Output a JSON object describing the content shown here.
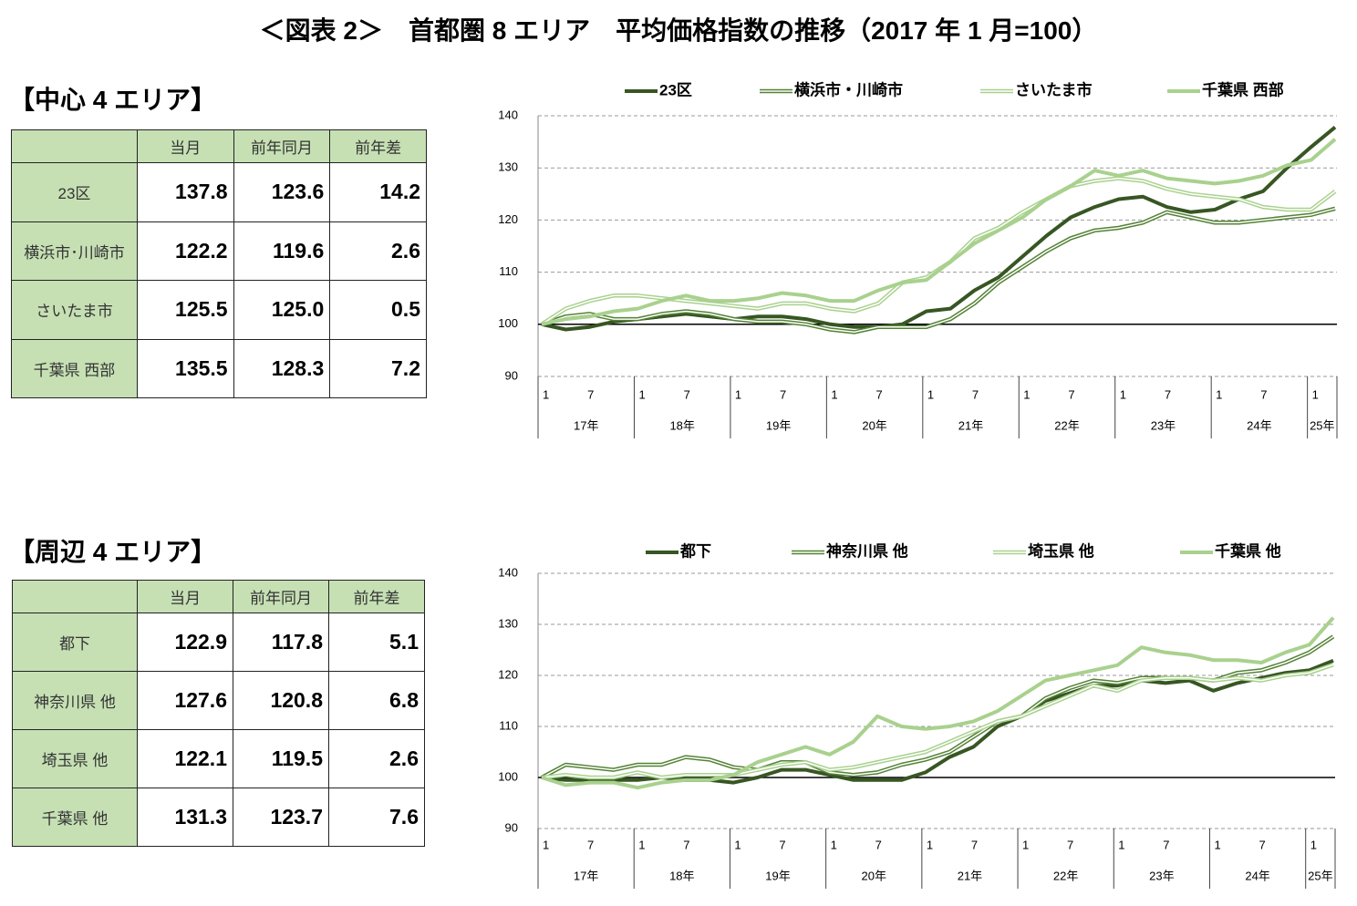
{
  "title": "＜図表 2＞　首都圏 8 エリア　平均価格指数の推移（2017 年 1 月=100）",
  "sections": [
    {
      "heading": "【中心 4 エリア】",
      "table": {
        "header": [
          "当月",
          "前年同月",
          "前年差"
        ],
        "rows": [
          [
            "23区",
            "137.8",
            "123.6",
            "14.2"
          ],
          [
            "横浜市･川崎市",
            "122.2",
            "119.6",
            "2.6"
          ],
          [
            "さいたま市",
            "125.5",
            "125.0",
            "0.5"
          ],
          [
            "千葉県 西部",
            "135.5",
            "128.3",
            "7.2"
          ]
        ]
      }
    },
    {
      "heading": "【周辺 4 エリア】",
      "table": {
        "header": [
          "当月",
          "前年同月",
          "前年差"
        ],
        "rows": [
          [
            "都下",
            "122.9",
            "117.8",
            "5.1"
          ],
          [
            "神奈川県 他",
            "127.6",
            "120.8",
            "6.8"
          ],
          [
            "埼玉県 他",
            "122.1",
            "119.5",
            "2.6"
          ],
          [
            "千葉県 他",
            "131.3",
            "123.7",
            "7.6"
          ]
        ]
      }
    }
  ],
  "chart_data": [
    {
      "type": "line",
      "categories": [
        "1",
        null,
        "7",
        null,
        "1",
        null,
        "7",
        null,
        "1",
        null,
        "7",
        null,
        "1",
        null,
        "7",
        null,
        "1",
        null,
        "7",
        null,
        "1",
        null,
        "7",
        null,
        "1",
        null,
        "7",
        null,
        "1",
        null,
        "7",
        null,
        "1",
        null
      ],
      "groups": [
        "17年",
        "18年",
        "19年",
        "20年",
        "21年",
        "22年",
        "23年",
        "24年",
        "25年"
      ],
      "ylim": [
        90,
        140
      ],
      "yticks": [
        90,
        100,
        110,
        120,
        130,
        140
      ],
      "grid": true,
      "reference_line": 100,
      "series": [
        {
          "name": "23区",
          "color": "#375623",
          "style": "thick",
          "values": [
            100,
            99,
            99.5,
            100.5,
            101,
            101.5,
            102,
            101.5,
            101,
            101.5,
            101.5,
            101,
            100,
            99.5,
            99.5,
            100,
            102.5,
            103,
            106.5,
            109,
            113,
            117,
            120.5,
            122.5,
            124,
            124.5,
            122.5,
            121.5,
            122,
            124,
            125.5,
            130,
            134,
            137.8
          ]
        },
        {
          "name": "横浜市・川崎市",
          "color": "#548235",
          "style": "double",
          "values": [
            100,
            101.5,
            102,
            101,
            101,
            102,
            102.5,
            102,
            101,
            100.5,
            100.5,
            100,
            99,
            98.5,
            99.5,
            99.5,
            99.5,
            101,
            104,
            108,
            111,
            114,
            116.5,
            118,
            118.5,
            119.5,
            121.5,
            120.5,
            119.5,
            119.5,
            120,
            120.5,
            121,
            122.2
          ]
        },
        {
          "name": "さいたま市",
          "color": "#a9d18e",
          "style": "double",
          "values": [
            100,
            103,
            104.5,
            105.5,
            105.5,
            105,
            104.5,
            104,
            103.5,
            103,
            104,
            104,
            103,
            102.5,
            104,
            108,
            109,
            112,
            116.5,
            118.5,
            121.5,
            124,
            126.5,
            127.5,
            128,
            127.5,
            126,
            125,
            124.5,
            124,
            122.5,
            122,
            122,
            125.5
          ]
        },
        {
          "name": "千葉県 西部",
          "color": "#a9d18e",
          "style": "thick",
          "values": [
            100,
            101,
            101.5,
            102.5,
            103,
            104.5,
            105.5,
            104.5,
            104.5,
            105,
            106,
            105.5,
            104.5,
            104.5,
            106.5,
            108,
            108.5,
            112,
            115.5,
            118,
            120.5,
            124,
            126.5,
            129.5,
            128.5,
            129.5,
            128,
            127.5,
            127,
            127.5,
            128.5,
            130.5,
            131.5,
            135.5
          ]
        }
      ]
    },
    {
      "type": "line",
      "categories": [
        "1",
        null,
        "7",
        null,
        "1",
        null,
        "7",
        null,
        "1",
        null,
        "7",
        null,
        "1",
        null,
        "7",
        null,
        "1",
        null,
        "7",
        null,
        "1",
        null,
        "7",
        null,
        "1",
        null,
        "7",
        null,
        "1",
        null,
        "7",
        null,
        "1",
        null
      ],
      "groups": [
        "17年",
        "18年",
        "19年",
        "20年",
        "21年",
        "22年",
        "23年",
        "24年",
        "25年"
      ],
      "ylim": [
        90,
        140
      ],
      "yticks": [
        90,
        100,
        110,
        120,
        130,
        140
      ],
      "grid": true,
      "reference_line": 100,
      "series": [
        {
          "name": "都下",
          "color": "#375623",
          "style": "thick",
          "values": [
            100,
            99.5,
            99.5,
            99.5,
            99.5,
            100,
            99.5,
            99.5,
            99,
            100,
            101.5,
            101.5,
            100.5,
            99.5,
            99.5,
            99.5,
            101,
            104,
            106,
            110,
            112,
            115,
            116.5,
            118,
            118,
            119,
            118.5,
            119,
            117,
            118.5,
            119.5,
            120.5,
            121,
            122.9
          ]
        },
        {
          "name": "神奈川県 他",
          "color": "#548235",
          "style": "double",
          "values": [
            100,
            102.5,
            102,
            101.5,
            102.5,
            102.5,
            104,
            103.5,
            102,
            101.5,
            103,
            103,
            101,
            100.5,
            101,
            102.5,
            103.5,
            105,
            108,
            111,
            112,
            115.5,
            117.5,
            119,
            118.5,
            119.5,
            119.5,
            119.5,
            119,
            120.5,
            121,
            122.5,
            124.5,
            127.6
          ]
        },
        {
          "name": "埼玉県 他",
          "color": "#a9d18e",
          "style": "double",
          "values": [
            100,
            100.5,
            100,
            100,
            101,
            100,
            100.5,
            100.5,
            100.5,
            101.5,
            102.5,
            103,
            101.5,
            102,
            103,
            104,
            105,
            107,
            109,
            111,
            112,
            114,
            116,
            118,
            117,
            119,
            119.5,
            119.5,
            119,
            119.5,
            119,
            120,
            120.5,
            122.1
          ]
        },
        {
          "name": "千葉県 他",
          "color": "#a9d18e",
          "style": "thick",
          "values": [
            100,
            98.5,
            99,
            99,
            98,
            99,
            99.5,
            99.5,
            100.5,
            103,
            104.5,
            106,
            104.5,
            107,
            112,
            110,
            109.5,
            110,
            111,
            113,
            116,
            119,
            120,
            121,
            122,
            125.5,
            124.5,
            124,
            123,
            123,
            122.5,
            124.5,
            126,
            131.3
          ]
        }
      ]
    }
  ]
}
